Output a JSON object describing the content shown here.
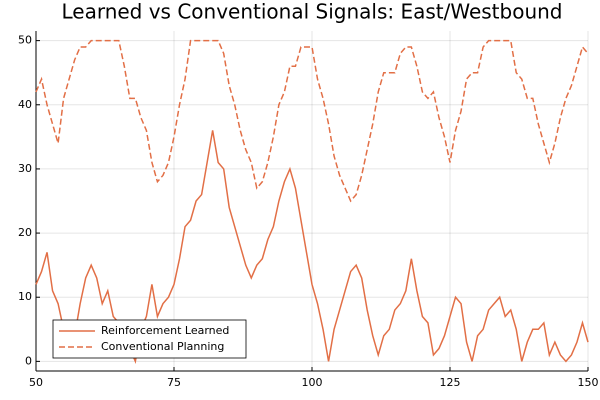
{
  "chart_data": {
    "type": "line",
    "title": "Learned vs Conventional Signals: East/Westbound",
    "x": [
      50,
      51,
      52,
      53,
      54,
      55,
      56,
      57,
      58,
      59,
      60,
      61,
      62,
      63,
      64,
      65,
      66,
      67,
      68,
      69,
      70,
      71,
      72,
      73,
      74,
      75,
      76,
      77,
      78,
      79,
      80,
      81,
      82,
      83,
      84,
      85,
      86,
      87,
      88,
      89,
      90,
      91,
      92,
      93,
      94,
      95,
      96,
      97,
      98,
      99,
      100,
      101,
      102,
      103,
      104,
      105,
      106,
      107,
      108,
      109,
      110,
      111,
      112,
      113,
      114,
      115,
      116,
      117,
      118,
      119,
      120,
      121,
      122,
      123,
      124,
      125,
      126,
      127,
      128,
      129,
      130,
      131,
      132,
      133,
      134,
      135,
      136,
      137,
      138,
      139,
      140,
      141,
      142,
      143,
      144,
      145,
      146,
      147,
      148,
      149,
      150
    ],
    "series": [
      {
        "name": "Reinforcement Learned",
        "color": "#e26f46",
        "linestyle": "solid",
        "values": [
          12,
          14,
          17,
          11,
          9,
          5,
          4,
          4,
          9,
          13,
          15,
          13,
          9,
          11,
          7,
          6,
          3,
          2,
          0,
          5,
          7,
          12,
          7,
          9,
          10,
          12,
          16,
          21,
          22,
          25,
          26,
          31,
          36,
          31,
          30,
          24,
          21,
          18,
          15,
          13,
          15,
          16,
          19,
          21,
          25,
          28,
          30,
          27,
          22,
          17,
          12,
          9,
          5,
          0,
          5,
          8,
          11,
          14,
          15,
          13,
          8,
          4,
          1,
          4,
          5,
          8,
          9,
          11,
          16,
          11,
          7,
          6,
          1,
          2,
          4,
          7,
          10,
          9,
          3,
          0,
          4,
          5,
          8,
          9,
          10,
          7,
          8,
          5,
          0,
          3,
          5,
          5,
          6,
          1,
          3,
          1,
          0,
          1,
          3,
          6,
          3
        ]
      },
      {
        "name": "Conventional Planning",
        "color": "#e26f46",
        "linestyle": "dashed",
        "values": [
          42,
          44,
          40,
          37,
          34,
          41,
          44,
          47,
          49,
          49,
          50,
          50,
          50,
          50,
          50,
          50,
          46,
          41,
          41,
          38,
          36,
          31,
          28,
          29,
          31,
          35,
          40,
          44,
          50,
          50,
          50,
          50,
          50,
          50,
          48,
          43,
          40,
          36,
          33,
          31,
          27,
          28,
          31,
          35,
          40,
          42,
          46,
          46,
          49,
          49,
          49,
          44,
          41,
          37,
          32,
          29,
          27,
          25,
          26,
          29,
          33,
          37,
          42,
          45,
          45,
          45,
          48,
          49,
          49,
          46,
          42,
          41,
          42,
          38,
          35,
          31,
          36,
          39,
          44,
          45,
          45,
          49,
          50,
          50,
          50,
          50,
          50,
          45,
          44,
          41,
          41,
          37,
          34,
          31,
          34,
          38,
          41,
          43,
          46,
          49,
          48
        ]
      }
    ],
    "xlim": [
      50,
      150
    ],
    "xticks": [
      50,
      75,
      100,
      125,
      150
    ],
    "ylim": [
      -1.5,
      51.5
    ],
    "yticks": [
      0,
      10,
      20,
      30,
      40,
      50
    ],
    "grid": true,
    "legend": "bottom left"
  }
}
